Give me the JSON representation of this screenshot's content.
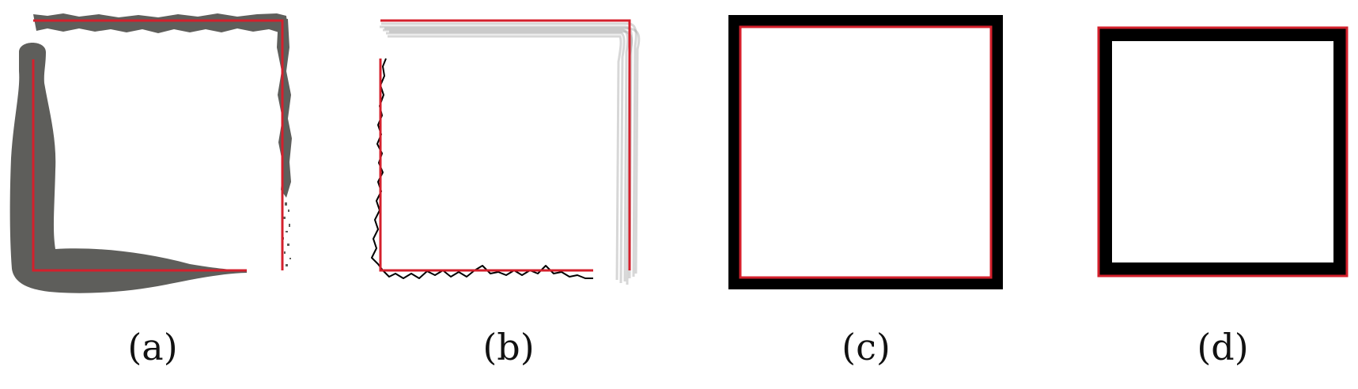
{
  "figure": {
    "colors": {
      "reference_line": "#d4202c",
      "gray_fill": "#5e5e5b",
      "ink": "#000000",
      "trace_gray": "#8c8c8c"
    },
    "panels": [
      {
        "id": "a",
        "caption": "(a)"
      },
      {
        "id": "b",
        "caption": "(b)"
      },
      {
        "id": "c",
        "caption": "(c)"
      },
      {
        "id": "d",
        "caption": "(d)"
      }
    ]
  }
}
